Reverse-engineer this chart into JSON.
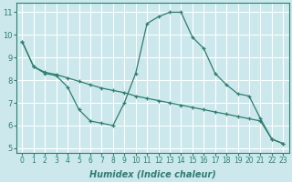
{
  "xlabel": "Humidex (Indice chaleur)",
  "bg_color": "#cce8ec",
  "grid_color": "#ffffff",
  "line_color": "#2e7d6e",
  "xlim": [
    -0.5,
    23.5
  ],
  "ylim": [
    4.8,
    11.4
  ],
  "yticks": [
    5,
    6,
    7,
    8,
    9,
    10,
    11
  ],
  "xticks": [
    0,
    1,
    2,
    3,
    4,
    5,
    6,
    7,
    8,
    9,
    10,
    11,
    12,
    13,
    14,
    15,
    16,
    17,
    18,
    19,
    20,
    21,
    22,
    23
  ],
  "line1_x": [
    0,
    1,
    2,
    3,
    4,
    5,
    6,
    7,
    8,
    9,
    10,
    11,
    12,
    13,
    14,
    15,
    16,
    17,
    18,
    19,
    20,
    21,
    22,
    23
  ],
  "line1_y": [
    9.7,
    8.6,
    8.3,
    8.2,
    7.7,
    6.7,
    6.2,
    6.1,
    6.0,
    7.0,
    8.3,
    10.5,
    10.8,
    11.0,
    11.0,
    9.9,
    9.4,
    8.3,
    7.8,
    7.4,
    7.3,
    6.3,
    5.4,
    5.2
  ],
  "line2_x": [
    0,
    1,
    2,
    3,
    4,
    5,
    6,
    7,
    8,
    9,
    10,
    11,
    12,
    13,
    14,
    15,
    16,
    17,
    18,
    19,
    20,
    21,
    22,
    23
  ],
  "line2_y": [
    9.7,
    8.6,
    8.35,
    8.25,
    8.1,
    7.95,
    7.8,
    7.65,
    7.55,
    7.45,
    7.3,
    7.2,
    7.1,
    7.0,
    6.9,
    6.8,
    6.7,
    6.6,
    6.5,
    6.4,
    6.3,
    6.2,
    5.4,
    5.2
  ]
}
